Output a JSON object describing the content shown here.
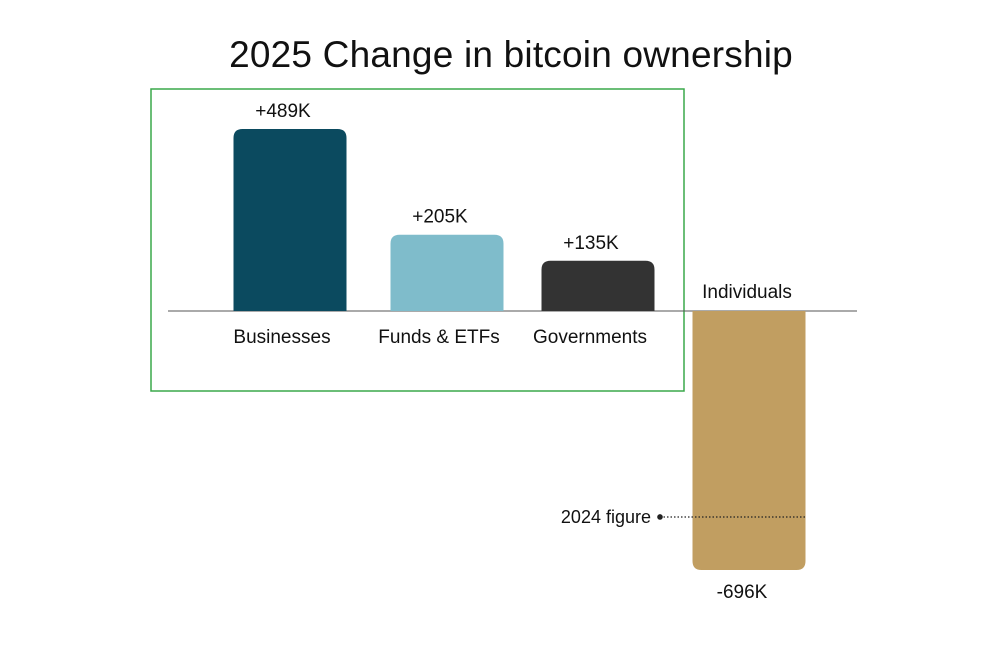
{
  "chart_data": {
    "type": "bar",
    "title": "2025 Change in bitcoin ownership",
    "xlabel": "",
    "ylabel": "",
    "categories": [
      "Businesses",
      "Funds & ETFs",
      "Governments",
      "Individuals"
    ],
    "values": [
      489,
      205,
      135,
      -696
    ],
    "value_unit": "K BTC",
    "data_labels": [
      "+489K",
      "+205K",
      "+135K",
      "-696K"
    ],
    "colors": [
      "#0b4a5f",
      "#7fbccb",
      "#333333",
      "#c19e61"
    ],
    "grid": false,
    "highlight": {
      "categories": [
        "Businesses",
        "Funds & ETFs",
        "Governments"
      ],
      "color": "#3aa84a"
    },
    "annotation": {
      "label": "2024 figure",
      "category": "Individuals",
      "value": -540
    }
  }
}
